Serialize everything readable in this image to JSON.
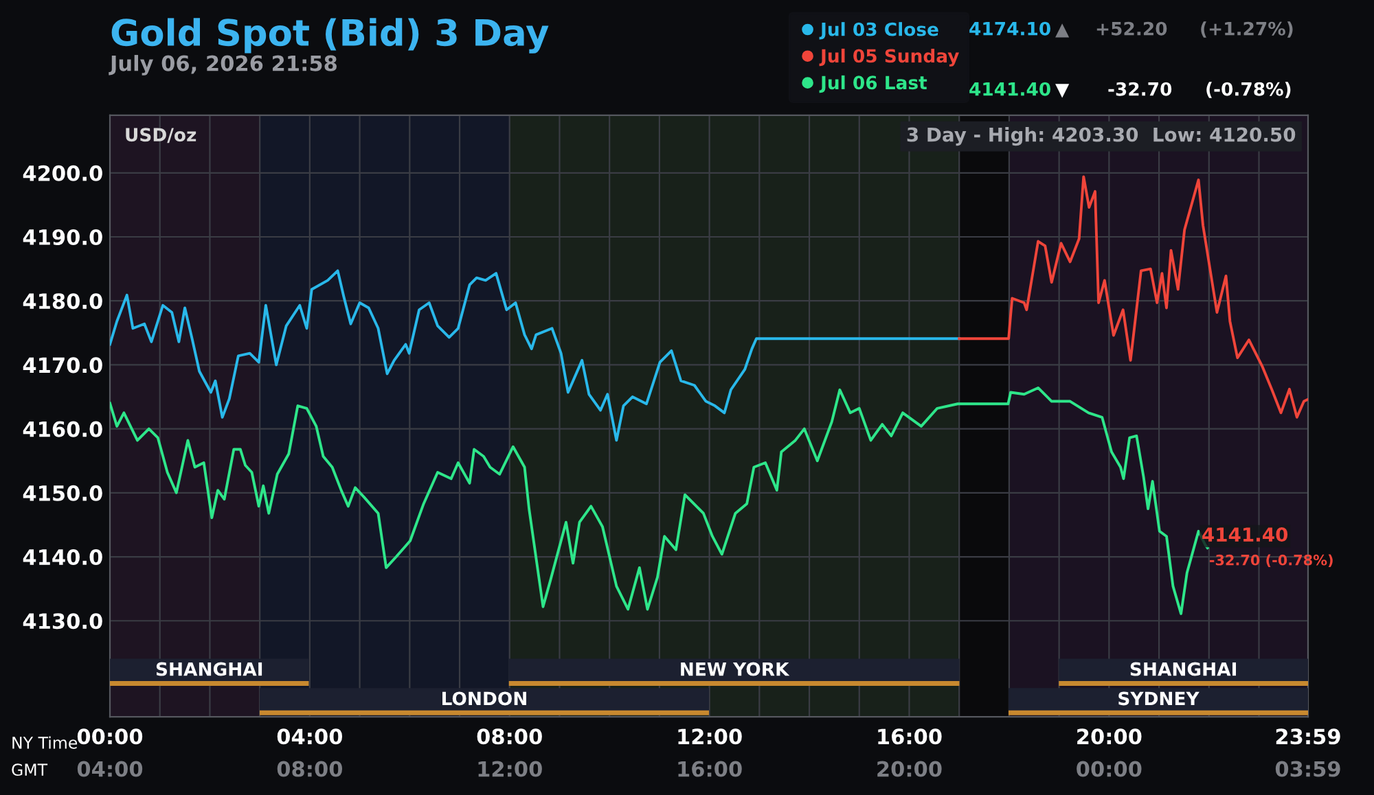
{
  "chart_data": {
    "type": "line",
    "title": "Gold Spot (Bid) 3 Day",
    "subtitle": "July 06, 2026 21:58",
    "ylabel": "USD/oz",
    "xlim": [
      0,
      23.983
    ],
    "ylim": [
      4115,
      4209
    ],
    "xticks": [
      {
        "value": 0,
        "label": "00:00"
      },
      {
        "value": 1,
        "label": null
      },
      {
        "value": 2,
        "label": null
      },
      {
        "value": 3,
        "label": null
      },
      {
        "value": 4,
        "label": "04:00"
      },
      {
        "value": 5,
        "label": null
      },
      {
        "value": 6,
        "label": null
      },
      {
        "value": 7,
        "label": null
      },
      {
        "value": 8,
        "label": "08:00"
      },
      {
        "value": 9,
        "label": null
      },
      {
        "value": 10,
        "label": null
      },
      {
        "value": 11,
        "label": null
      },
      {
        "value": 12,
        "label": "12:00"
      },
      {
        "value": 13,
        "label": null
      },
      {
        "value": 14,
        "label": null
      },
      {
        "value": 15,
        "label": null
      },
      {
        "value": 16,
        "label": "16:00"
      },
      {
        "value": 17,
        "label": null
      },
      {
        "value": 18,
        "label": null
      },
      {
        "value": 19,
        "label": null
      },
      {
        "value": 20,
        "label": "20:00"
      },
      {
        "value": 21,
        "label": null
      },
      {
        "value": 22,
        "label": null
      },
      {
        "value": 23,
        "label": null
      },
      {
        "value": 23.983,
        "label": "23:59"
      }
    ],
    "xlabel": "NY Time",
    "x2label": "GMT",
    "x2lim": [
      "2026-07-06T04:00",
      "2026-07-07T03:59"
    ],
    "x2ticks": [
      {
        "value": "2026-07-06T04:00",
        "label": "04:00"
      },
      {
        "value": "2026-07-06T08:00",
        "label": "08:00"
      },
      {
        "value": "2026-07-06T12:00",
        "label": "12:00"
      },
      {
        "value": "2026-07-06T16:00",
        "label": "16:00"
      },
      {
        "value": "2026-07-06T20:00",
        "label": "20:00"
      },
      {
        "value": "2026-07-07T00:00",
        "label": "00:00"
      },
      {
        "value": "2026-07-07T03:59",
        "label": "03:59"
      }
    ],
    "yticks": [
      {
        "value": 4130,
        "label": "4130.0"
      },
      {
        "value": 4140,
        "label": "4140.0"
      },
      {
        "value": 4150,
        "label": "4150.0"
      },
      {
        "value": 4160,
        "label": "4160.0"
      },
      {
        "value": 4170,
        "label": "4170.0"
      },
      {
        "value": 4180,
        "label": "4180.0"
      },
      {
        "value": 4190,
        "label": "4190.0"
      },
      {
        "value": 4200,
        "label": "4200.0"
      }
    ],
    "grid": true,
    "legend": "top right",
    "marker": "none",
    "line_style": "solid",
    "series": [
      {
        "name": "Jul 03 Close",
        "color": "#29b8ea",
        "x": [
          0,
          0.14,
          0.34,
          0.46,
          0.69,
          0.83,
          1.06,
          1.24,
          1.38,
          1.5,
          1.65,
          1.79,
          2.02,
          2.11,
          2.25,
          2.39,
          2.57,
          2.8,
          2.98,
          3.12,
          3.33,
          3.53,
          3.8,
          3.94,
          4.04,
          4.36,
          4.56,
          4.68,
          4.82,
          5.0,
          5.18,
          5.37,
          5.55,
          5.69,
          5.92,
          5.99,
          6.19,
          6.39,
          6.56,
          6.79,
          6.97,
          7.2,
          7.34,
          7.52,
          7.73,
          7.94,
          8.12,
          8.3,
          8.44,
          8.53,
          8.85,
          9.03,
          9.17,
          9.45,
          9.59,
          9.82,
          9.96,
          10.14,
          10.28,
          10.46,
          10.74,
          11.01,
          11.24,
          11.43,
          11.7,
          11.93,
          12.11,
          12.3,
          12.43,
          12.71,
          12.85,
          12.94,
          17.0
        ],
        "values": [
          4173.2,
          4176.8,
          4180.9,
          4175.7,
          4176.4,
          4173.6,
          4179.3,
          4178.2,
          4173.6,
          4178.9,
          4173.9,
          4169.0,
          4165.7,
          4167.5,
          4161.8,
          4164.7,
          4171.4,
          4171.8,
          4170.4,
          4179.3,
          4170.0,
          4176.1,
          4179.3,
          4175.7,
          4181.8,
          4183.2,
          4184.7,
          4180.7,
          4176.4,
          4179.7,
          4178.9,
          4175.7,
          4168.6,
          4170.7,
          4173.2,
          4171.8,
          4178.6,
          4179.7,
          4176.1,
          4174.3,
          4175.7,
          4182.5,
          4183.6,
          4183.2,
          4184.3,
          4178.6,
          4179.7,
          4174.7,
          4172.5,
          4174.7,
          4175.7,
          4171.8,
          4165.7,
          4170.7,
          4165.4,
          4162.9,
          4165.4,
          4158.2,
          4163.6,
          4165.0,
          4163.9,
          4170.4,
          4172.2,
          4167.5,
          4166.8,
          4164.3,
          4163.6,
          4162.5,
          4166.1,
          4169.3,
          4172.5,
          4174.1,
          4174.1
        ]
      },
      {
        "name": "Jul 05 Sunday",
        "color": "#f0453a",
        "x": [
          17.0,
          17.99,
          18.02,
          18.06,
          18.3,
          18.35,
          18.58,
          18.72,
          18.85,
          19.04,
          19.22,
          19.4,
          19.49,
          19.6,
          19.72,
          19.79,
          19.91,
          20.09,
          20.28,
          20.43,
          20.64,
          20.83,
          20.96,
          21.06,
          21.15,
          21.24,
          21.38,
          21.51,
          21.79,
          21.88,
          22.16,
          22.34,
          22.42,
          22.57,
          22.8,
          23.07,
          23.26,
          23.44,
          23.61,
          23.76,
          23.9,
          23.98
        ],
        "values": [
          4174.1,
          4174.1,
          4176.9,
          4180.4,
          4179.7,
          4178.6,
          4189.3,
          4188.6,
          4182.9,
          4189.0,
          4186.1,
          4189.7,
          4199.4,
          4194.6,
          4197.1,
          4179.7,
          4183.2,
          4174.6,
          4178.6,
          4170.7,
          4184.7,
          4185.0,
          4179.7,
          4184.3,
          4178.9,
          4187.9,
          4181.8,
          4191.1,
          4198.9,
          4191.8,
          4178.2,
          4183.9,
          4176.8,
          4171.1,
          4173.9,
          4169.7,
          4166.1,
          4162.5,
          4166.2,
          4161.8,
          4164.3,
          4164.6
        ]
      },
      {
        "name": "Jul 06 Last",
        "color": "#2ee68a",
        "x": [
          0,
          0.14,
          0.28,
          0.55,
          0.78,
          0.96,
          1.15,
          1.33,
          1.56,
          1.7,
          1.88,
          2.04,
          2.16,
          2.29,
          2.48,
          2.61,
          2.71,
          2.84,
          2.98,
          3.07,
          3.18,
          3.35,
          3.58,
          3.76,
          3.94,
          4.13,
          4.27,
          4.45,
          4.63,
          4.77,
          4.91,
          5.09,
          5.37,
          5.53,
          5.73,
          6.01,
          6.28,
          6.56,
          6.83,
          6.97,
          7.2,
          7.29,
          7.48,
          7.61,
          7.8,
          8.07,
          8.3,
          8.39,
          8.67,
          8.81,
          9.13,
          9.27,
          9.4,
          9.63,
          9.86,
          10.14,
          10.37,
          10.6,
          10.76,
          10.96,
          11.1,
          11.33,
          11.51,
          11.88,
          12.06,
          12.25,
          12.52,
          12.75,
          12.89,
          13.12,
          13.35,
          13.44,
          13.72,
          13.9,
          14.16,
          14.45,
          14.61,
          14.82,
          15.0,
          15.23,
          15.46,
          15.64,
          15.87,
          16.24,
          16.56,
          16.97,
          17.98,
          18.03,
          18.3,
          18.58,
          18.85,
          19.22,
          19.59,
          19.86,
          20.05,
          20.23,
          20.29,
          20.41,
          20.55,
          20.69,
          20.78,
          20.87,
          21.01,
          21.15,
          21.28,
          21.44,
          21.56,
          21.79,
          21.93,
          21.97
        ],
        "values": [
          4164.0,
          4160.4,
          4162.5,
          4158.2,
          4160.0,
          4158.6,
          4153.2,
          4150.0,
          4158.2,
          4154.0,
          4154.7,
          4146.1,
          4150.4,
          4149.0,
          4156.8,
          4156.8,
          4154.3,
          4153.2,
          4147.9,
          4151.1,
          4146.8,
          4152.9,
          4156.1,
          4163.6,
          4163.2,
          4160.4,
          4155.7,
          4154.0,
          4150.4,
          4147.9,
          4150.8,
          4149.3,
          4146.8,
          4138.3,
          4140.0,
          4142.5,
          4148.3,
          4153.2,
          4152.2,
          4154.7,
          4151.5,
          4156.8,
          4155.7,
          4154.0,
          4152.9,
          4157.2,
          4154.0,
          4147.5,
          4132.2,
          4136.1,
          4145.4,
          4139.0,
          4145.4,
          4147.9,
          4144.7,
          4135.4,
          4131.8,
          4138.3,
          4131.8,
          4136.8,
          4143.2,
          4141.1,
          4149.7,
          4146.8,
          4143.2,
          4140.4,
          4146.8,
          4148.3,
          4154.0,
          4154.7,
          4150.4,
          4156.4,
          4158.2,
          4160.0,
          4155.0,
          4161.1,
          4166.1,
          4162.5,
          4163.2,
          4158.2,
          4160.7,
          4158.9,
          4162.5,
          4160.4,
          4163.2,
          4163.9,
          4163.9,
          4165.7,
          4165.4,
          4166.4,
          4164.3,
          4164.3,
          4162.5,
          4161.8,
          4156.4,
          4154.0,
          4152.2,
          4158.6,
          4158.9,
          4152.5,
          4147.5,
          4151.8,
          4144.0,
          4143.2,
          4135.4,
          4131.1,
          4137.5,
          4144.0,
          4141.8,
          4141.4
        ]
      }
    ],
    "bands": [
      {
        "axis": "x",
        "from": 0,
        "to": 3,
        "color": "#1e1422"
      },
      {
        "axis": "x",
        "from": 3,
        "to": 8,
        "color": "#121727"
      },
      {
        "axis": "x",
        "from": 8,
        "to": 17,
        "color": "#18211a"
      },
      {
        "axis": "x",
        "from": 17,
        "to": 18,
        "color": "#0a0a0c"
      },
      {
        "axis": "x",
        "from": 18,
        "to": 23.983,
        "color": "#1b1222"
      }
    ],
    "annotations": [
      {
        "text": "4141.40",
        "x": 21.97,
        "y": 4141.4
      },
      "-32.70 (-0.78%)",
      "3 Day - High: 4203.30  Low: 4120.50",
      "4174.10",
      "▲",
      "+52.20",
      "(+1.27%)",
      "4141.40",
      "▼",
      "-32.70",
      "(-0.78%)",
      "SHANGHAI",
      "LONDON",
      "NEW YORK",
      "SYDNEY",
      "SHANGHAI"
    ]
  }
}
